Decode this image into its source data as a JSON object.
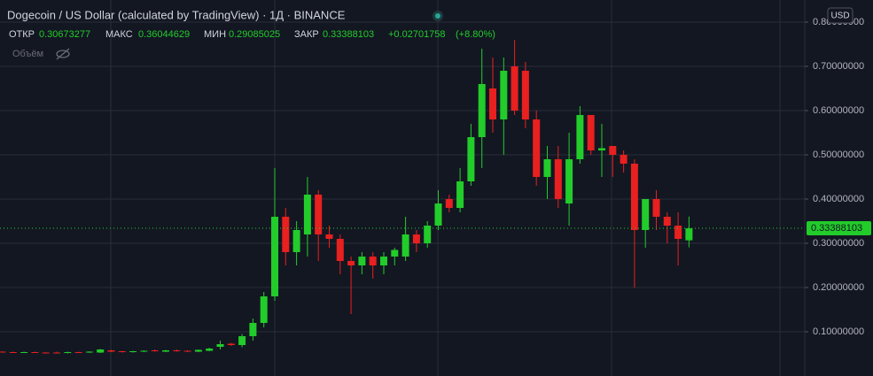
{
  "chart_data": {
    "type": "candlestick",
    "title": "Dogecoin / US Dollar (calculated by TradingView) · 1Д · BINANCE",
    "ohlc_labels": {
      "open": "ОТКР",
      "high": "МАКС",
      "low": "МИН",
      "close": "ЗАКР"
    },
    "change": "+0.02701758",
    "change_pct": "(+8.80%)",
    "volume_label": "Объём",
    "currency": "USD",
    "up_color": "#22cc2a",
    "down_color": "#e8201f",
    "grid": true,
    "ylim": [
      0,
      0.85
    ],
    "yticks": [
      {
        "value": 0.1,
        "label": "0.10000000"
      },
      {
        "value": 0.2,
        "label": "0.20000000"
      },
      {
        "value": 0.3,
        "label": "0.30000000"
      },
      {
        "value": 0.4,
        "label": "0.40000000"
      },
      {
        "value": 0.5,
        "label": "0.50000000"
      },
      {
        "value": 0.6,
        "label": "0.60000000"
      },
      {
        "value": 0.7,
        "label": "0.70000000"
      },
      {
        "value": 0.8,
        "label": "0.80000000"
      }
    ],
    "open": [
      0.055,
      0.054,
      0.053,
      0.054,
      0.053,
      0.053,
      0.052,
      0.054,
      0.053,
      0.053,
      0.058,
      0.056,
      0.054,
      0.055,
      0.058,
      0.055,
      0.058,
      0.057,
      0.055,
      0.057,
      0.066,
      0.073,
      0.07,
      0.09,
      0.12,
      0.18,
      0.36,
      0.28,
      0.32,
      0.41,
      0.32,
      0.31,
      0.26,
      0.25,
      0.27,
      0.25,
      0.27,
      0.27,
      0.32,
      0.3,
      0.34,
      0.4,
      0.38,
      0.44,
      0.54,
      0.65,
      0.58,
      0.7,
      0.69,
      0.58,
      0.45,
      0.49,
      0.39,
      0.49,
      0.59,
      0.51,
      0.52,
      0.5,
      0.48,
      0.33,
      0.4,
      0.36,
      0.34,
      0.30673277
    ],
    "high": [
      0.056,
      0.055,
      0.055,
      0.055,
      0.054,
      0.055,
      0.055,
      0.055,
      0.056,
      0.061,
      0.059,
      0.057,
      0.057,
      0.058,
      0.06,
      0.059,
      0.06,
      0.058,
      0.06,
      0.064,
      0.08,
      0.075,
      0.095,
      0.13,
      0.19,
      0.47,
      0.38,
      0.35,
      0.45,
      0.42,
      0.34,
      0.32,
      0.27,
      0.28,
      0.28,
      0.28,
      0.29,
      0.36,
      0.33,
      0.35,
      0.42,
      0.41,
      0.47,
      0.57,
      0.74,
      0.72,
      0.72,
      0.76,
      0.71,
      0.6,
      0.52,
      0.52,
      0.55,
      0.61,
      0.59,
      0.57,
      0.52,
      0.51,
      0.49,
      0.4,
      0.42,
      0.37,
      0.37,
      0.36044629
    ],
    "low": [
      0.053,
      0.052,
      0.052,
      0.052,
      0.051,
      0.052,
      0.051,
      0.052,
      0.052,
      0.052,
      0.054,
      0.053,
      0.053,
      0.054,
      0.055,
      0.054,
      0.055,
      0.054,
      0.054,
      0.056,
      0.06,
      0.068,
      0.065,
      0.08,
      0.11,
      0.17,
      0.25,
      0.25,
      0.27,
      0.26,
      0.29,
      0.23,
      0.14,
      0.23,
      0.22,
      0.23,
      0.25,
      0.26,
      0.28,
      0.29,
      0.33,
      0.37,
      0.37,
      0.43,
      0.47,
      0.55,
      0.5,
      0.59,
      0.56,
      0.43,
      0.4,
      0.38,
      0.34,
      0.48,
      0.5,
      0.45,
      0.45,
      0.46,
      0.2,
      0.29,
      0.33,
      0.3,
      0.25,
      0.29085025
    ],
    "close": [
      0.054,
      0.053,
      0.054,
      0.053,
      0.052,
      0.052,
      0.054,
      0.053,
      0.055,
      0.06,
      0.055,
      0.054,
      0.056,
      0.057,
      0.056,
      0.058,
      0.056,
      0.055,
      0.059,
      0.062,
      0.072,
      0.07,
      0.09,
      0.12,
      0.18,
      0.36,
      0.28,
      0.33,
      0.41,
      0.32,
      0.31,
      0.26,
      0.25,
      0.27,
      0.25,
      0.27,
      0.285,
      0.32,
      0.3,
      0.34,
      0.39,
      0.38,
      0.44,
      0.54,
      0.66,
      0.58,
      0.69,
      0.6,
      0.58,
      0.45,
      0.49,
      0.4,
      0.49,
      0.59,
      0.51,
      0.515,
      0.5,
      0.48,
      0.33,
      0.4,
      0.36,
      0.34,
      0.31,
      0.33388103
    ]
  }
}
